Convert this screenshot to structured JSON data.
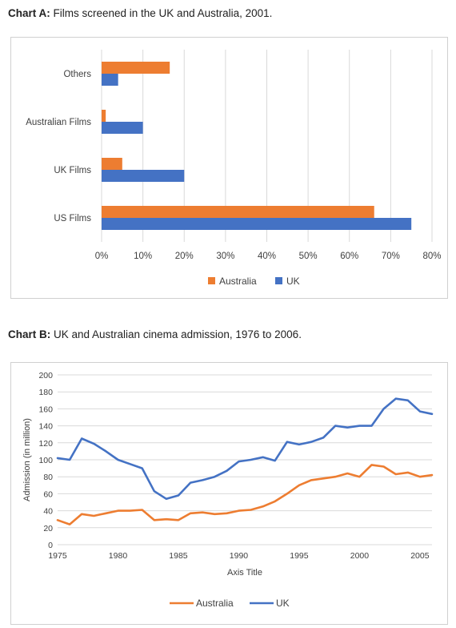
{
  "chart_a": {
    "heading_label": "Chart A:",
    "heading_text": " Films screened in the UK and Australia, 2001."
  },
  "chart_b": {
    "heading_label": "Chart B:",
    "heading_text": " UK and Australian cinema admission, 1976 to 2006."
  },
  "colors": {
    "australia": "#ED7D31",
    "uk": "#4472C4",
    "grid": "#d9d9d9"
  },
  "chart_data": [
    {
      "type": "bar",
      "orientation": "horizontal",
      "categories": [
        "US Films",
        "UK Films",
        "Australian Films",
        "Others"
      ],
      "series": [
        {
          "name": "Australia",
          "values": [
            66,
            5,
            1,
            16.5
          ]
        },
        {
          "name": "UK",
          "values": [
            75,
            20,
            10,
            4
          ]
        }
      ],
      "xlim": [
        0,
        80
      ],
      "x_ticks": [
        "0%",
        "10%",
        "20%",
        "30%",
        "40%",
        "50%",
        "60%",
        "70%",
        "80%"
      ],
      "grid": true,
      "legend": "bottom"
    },
    {
      "type": "line",
      "x": [
        1975,
        1976,
        1977,
        1978,
        1979,
        1980,
        1981,
        1982,
        1983,
        1984,
        1985,
        1986,
        1987,
        1988,
        1989,
        1990,
        1991,
        1992,
        1993,
        1994,
        1995,
        1996,
        1997,
        1998,
        1999,
        2000,
        2001,
        2002,
        2003,
        2004,
        2005,
        2006
      ],
      "series": [
        {
          "name": "Australia",
          "values": [
            29,
            24,
            36,
            34,
            37,
            40,
            40,
            41,
            29,
            30,
            29,
            37,
            38,
            36,
            37,
            40,
            41,
            45,
            51,
            60,
            70,
            76,
            78,
            80,
            84,
            80,
            94,
            92,
            83,
            85,
            80,
            82
          ]
        },
        {
          "name": "UK",
          "values": [
            102,
            100,
            125,
            119,
            110,
            100,
            95,
            90,
            63,
            54,
            58,
            73,
            76,
            80,
            87,
            98,
            100,
            103,
            99,
            121,
            118,
            121,
            126,
            140,
            138,
            140,
            140,
            160,
            172,
            170,
            157,
            154
          ]
        }
      ],
      "xlabel": "Axis Title",
      "ylabel": "Admission (in million)",
      "xlim": [
        1975,
        2006
      ],
      "ylim": [
        0,
        200
      ],
      "x_ticks": [
        "1975",
        "1980",
        "1985",
        "1990",
        "1995",
        "2000",
        "2005"
      ],
      "y_ticks": [
        "0",
        "20",
        "40",
        "60",
        "80",
        "100",
        "120",
        "140",
        "160",
        "180",
        "200"
      ],
      "grid": true,
      "legend": "bottom"
    }
  ]
}
